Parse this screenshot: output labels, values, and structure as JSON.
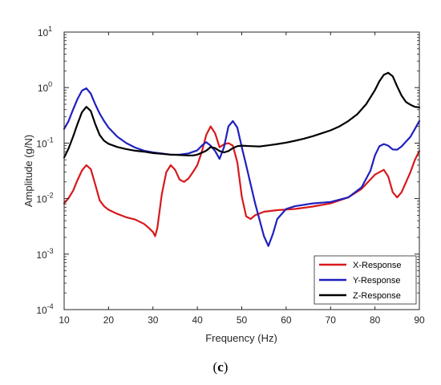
{
  "chart_data": {
    "type": "line",
    "title": "",
    "xlabel": "Frequency (Hz)",
    "ylabel": "Amplitude (g/N)",
    "xlim": [
      10,
      90
    ],
    "ylim": [
      0.0001,
      10
    ],
    "yscale": "log",
    "xticks": [
      "10",
      "20",
      "30",
      "40",
      "50",
      "60",
      "70",
      "80",
      "90"
    ],
    "yticks": [
      {
        "base": "10",
        "exp": "-4"
      },
      {
        "base": "10",
        "exp": "-3"
      },
      {
        "base": "10",
        "exp": "-2"
      },
      {
        "base": "10",
        "exp": "-1"
      },
      {
        "base": "10",
        "exp": "0"
      },
      {
        "base": "10",
        "exp": "1"
      }
    ],
    "grid": false,
    "legend_position": "bottom-right",
    "series": [
      {
        "name": "X-Response",
        "color": "#d7191c",
        "points": [
          [
            10,
            0.0082
          ],
          [
            11,
            0.0102
          ],
          [
            12,
            0.0138
          ],
          [
            13,
            0.0215
          ],
          [
            14,
            0.032
          ],
          [
            15,
            0.04
          ],
          [
            16,
            0.034
          ],
          [
            17,
            0.018
          ],
          [
            18,
            0.0093
          ],
          [
            19,
            0.0073
          ],
          [
            20,
            0.0063
          ],
          [
            22,
            0.0053
          ],
          [
            24,
            0.0046
          ],
          [
            26,
            0.0042
          ],
          [
            28,
            0.0035
          ],
          [
            29,
            0.003
          ],
          [
            30,
            0.0025
          ],
          [
            30.5,
            0.0021
          ],
          [
            31,
            0.003
          ],
          [
            32,
            0.012
          ],
          [
            33,
            0.03
          ],
          [
            34,
            0.04
          ],
          [
            35,
            0.033
          ],
          [
            36,
            0.022
          ],
          [
            37,
            0.02
          ],
          [
            38,
            0.023
          ],
          [
            39,
            0.03
          ],
          [
            40,
            0.04
          ],
          [
            41,
            0.07
          ],
          [
            42,
            0.14
          ],
          [
            43,
            0.2
          ],
          [
            44,
            0.15
          ],
          [
            45,
            0.084
          ],
          [
            46,
            0.095
          ],
          [
            47,
            0.1
          ],
          [
            48,
            0.09
          ],
          [
            49,
            0.045
          ],
          [
            50,
            0.011
          ],
          [
            51,
            0.0048
          ],
          [
            52,
            0.0043
          ],
          [
            53,
            0.005
          ],
          [
            55,
            0.0058
          ],
          [
            58,
            0.0062
          ],
          [
            62,
            0.0065
          ],
          [
            66,
            0.0072
          ],
          [
            70,
            0.0082
          ],
          [
            74,
            0.0105
          ],
          [
            77,
            0.015
          ],
          [
            80,
            0.027
          ],
          [
            82,
            0.033
          ],
          [
            83,
            0.025
          ],
          [
            84,
            0.013
          ],
          [
            85,
            0.0105
          ],
          [
            86,
            0.013
          ],
          [
            88,
            0.03
          ],
          [
            89,
            0.05
          ],
          [
            90,
            0.072
          ]
        ]
      },
      {
        "name": "Y-Response",
        "color": "#1f1fbf",
        "points": [
          [
            10,
            0.18
          ],
          [
            11,
            0.25
          ],
          [
            12,
            0.4
          ],
          [
            13,
            0.62
          ],
          [
            14,
            0.88
          ],
          [
            15,
            0.97
          ],
          [
            16,
            0.78
          ],
          [
            17,
            0.5
          ],
          [
            18,
            0.34
          ],
          [
            19,
            0.25
          ],
          [
            20,
            0.19
          ],
          [
            22,
            0.13
          ],
          [
            24,
            0.1
          ],
          [
            26,
            0.083
          ],
          [
            28,
            0.073
          ],
          [
            30,
            0.068
          ],
          [
            32,
            0.065
          ],
          [
            34,
            0.062
          ],
          [
            36,
            0.062
          ],
          [
            38,
            0.065
          ],
          [
            40,
            0.074
          ],
          [
            41,
            0.09
          ],
          [
            42,
            0.104
          ],
          [
            43,
            0.09
          ],
          [
            44,
            0.072
          ],
          [
            45,
            0.052
          ],
          [
            46,
            0.085
          ],
          [
            47,
            0.2
          ],
          [
            48,
            0.25
          ],
          [
            49,
            0.19
          ],
          [
            50,
            0.085
          ],
          [
            51,
            0.04
          ],
          [
            52,
            0.018
          ],
          [
            53,
            0.0083
          ],
          [
            54,
            0.0042
          ],
          [
            55,
            0.0021
          ],
          [
            56,
            0.0014
          ],
          [
            57,
            0.0023
          ],
          [
            58,
            0.0043
          ],
          [
            60,
            0.0065
          ],
          [
            62,
            0.0073
          ],
          [
            66,
            0.0082
          ],
          [
            70,
            0.0087
          ],
          [
            74,
            0.0105
          ],
          [
            77,
            0.016
          ],
          [
            79,
            0.032
          ],
          [
            80,
            0.06
          ],
          [
            81,
            0.088
          ],
          [
            82,
            0.096
          ],
          [
            83,
            0.09
          ],
          [
            84,
            0.077
          ],
          [
            85,
            0.076
          ],
          [
            86,
            0.087
          ],
          [
            88,
            0.13
          ],
          [
            89,
            0.18
          ],
          [
            90,
            0.25
          ]
        ]
      },
      {
        "name": "Z-Response",
        "color": "#000000",
        "points": [
          [
            10,
            0.055
          ],
          [
            11,
            0.08
          ],
          [
            12,
            0.13
          ],
          [
            13,
            0.22
          ],
          [
            14,
            0.36
          ],
          [
            15,
            0.45
          ],
          [
            16,
            0.38
          ],
          [
            17,
            0.22
          ],
          [
            18,
            0.14
          ],
          [
            19,
            0.11
          ],
          [
            20,
            0.097
          ],
          [
            22,
            0.085
          ],
          [
            24,
            0.078
          ],
          [
            26,
            0.073
          ],
          [
            28,
            0.07
          ],
          [
            30,
            0.066
          ],
          [
            32,
            0.064
          ],
          [
            34,
            0.062
          ],
          [
            36,
            0.061
          ],
          [
            38,
            0.06
          ],
          [
            39,
            0.06
          ],
          [
            40,
            0.062
          ],
          [
            41,
            0.067
          ],
          [
            42,
            0.073
          ],
          [
            43,
            0.085
          ],
          [
            44,
            0.081
          ],
          [
            45,
            0.072
          ],
          [
            46,
            0.068
          ],
          [
            47,
            0.072
          ],
          [
            48,
            0.081
          ],
          [
            49,
            0.088
          ],
          [
            50,
            0.09
          ],
          [
            52,
            0.088
          ],
          [
            54,
            0.087
          ],
          [
            56,
            0.091
          ],
          [
            58,
            0.096
          ],
          [
            60,
            0.102
          ],
          [
            62,
            0.11
          ],
          [
            64,
            0.12
          ],
          [
            66,
            0.133
          ],
          [
            68,
            0.15
          ],
          [
            70,
            0.17
          ],
          [
            72,
            0.2
          ],
          [
            74,
            0.25
          ],
          [
            76,
            0.33
          ],
          [
            78,
            0.5
          ],
          [
            80,
            0.9
          ],
          [
            81,
            1.3
          ],
          [
            82,
            1.7
          ],
          [
            83,
            1.85
          ],
          [
            84,
            1.6
          ],
          [
            85,
            1.05
          ],
          [
            86,
            0.72
          ],
          [
            87,
            0.55
          ],
          [
            88,
            0.49
          ],
          [
            89,
            0.45
          ],
          [
            90,
            0.44
          ]
        ]
      }
    ]
  },
  "caption": "(c)"
}
